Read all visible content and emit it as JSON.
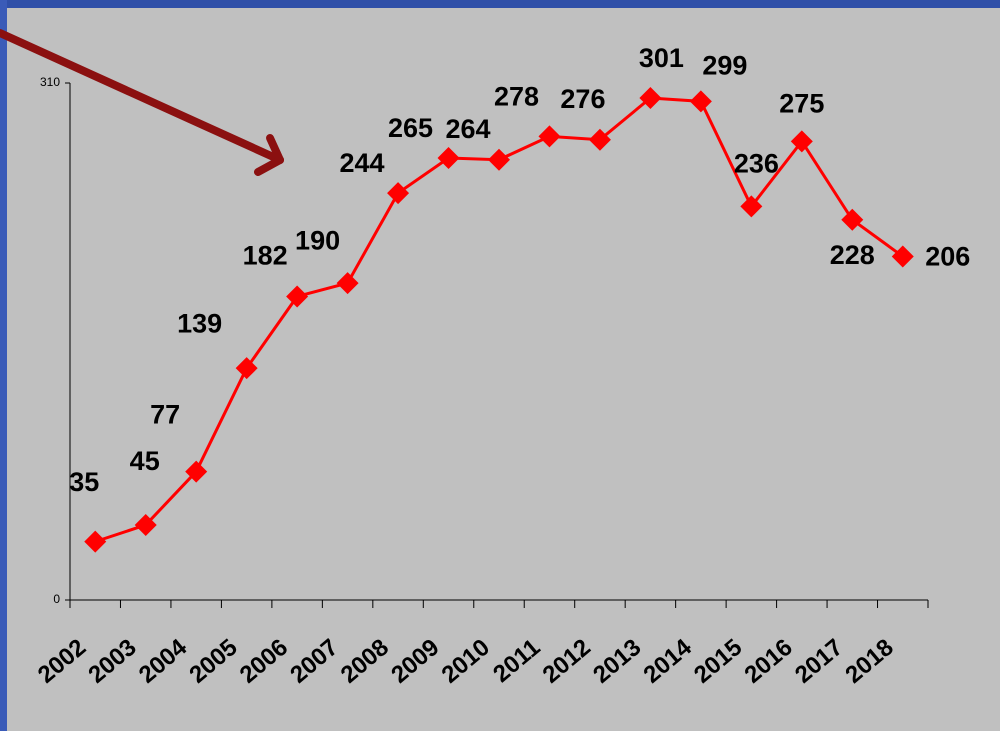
{
  "chart_data": {
    "type": "line",
    "categories": [
      "2002",
      "2003",
      "2004",
      "2005",
      "2006",
      "2007",
      "2008",
      "2009",
      "2010",
      "2011",
      "2012",
      "2013",
      "2014",
      "2015",
      "2016",
      "2017",
      "2018"
    ],
    "values": [
      35,
      45,
      77,
      139,
      182,
      190,
      244,
      265,
      264,
      278,
      276,
      301,
      299,
      236,
      275,
      228,
      206
    ],
    "color": "#ff0000",
    "ylim": [
      0,
      310
    ],
    "yticks": [
      0,
      310
    ],
    "grid": false
  }
}
